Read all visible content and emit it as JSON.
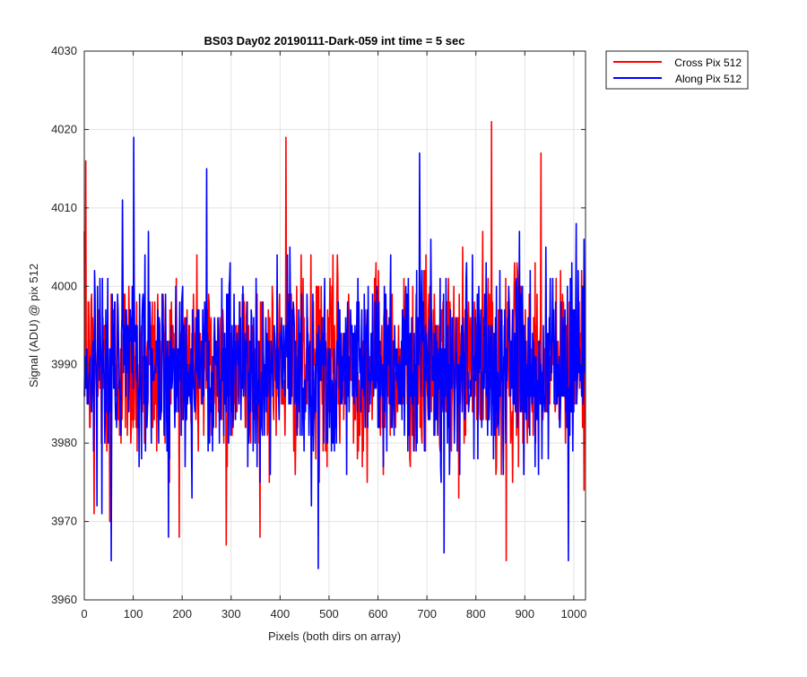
{
  "chart_data": {
    "type": "line",
    "title": "BS03 Day02 20190111-Dark-059 int time = 5 sec",
    "xlabel": "Pixels (both dirs on array)",
    "ylabel": "Signal (ADU) @ pix 512",
    "xlim": [
      0,
      1024
    ],
    "ylim": [
      3960,
      4030
    ],
    "xticks": [
      0,
      100,
      200,
      300,
      400,
      500,
      600,
      700,
      800,
      900,
      1000
    ],
    "yticks": [
      3960,
      3970,
      3980,
      3990,
      4000,
      4010,
      4020,
      4030
    ],
    "grid": true,
    "legend_position": "outside-top-right",
    "series": [
      {
        "name": "Cross Pix 512",
        "color": "#ff0000",
        "noisy_trace": {
          "n_points": 1024,
          "mean": 3990,
          "min": 3965,
          "max": 4021
        },
        "features": [
          {
            "x": 3,
            "y": 4016
          },
          {
            "x": 20,
            "y": 3971
          },
          {
            "x": 52,
            "y": 3970
          },
          {
            "x": 290,
            "y": 3967
          },
          {
            "x": 412,
            "y": 4019
          },
          {
            "x": 832,
            "y": 4021
          },
          {
            "x": 862,
            "y": 3965
          },
          {
            "x": 933,
            "y": 4017
          }
        ]
      },
      {
        "name": "Along Pix 512",
        "color": "#0000ff",
        "noisy_trace": {
          "n_points": 1024,
          "mean": 3990,
          "min": 3964,
          "max": 4019
        },
        "features": [
          {
            "x": 101,
            "y": 4019
          },
          {
            "x": 55,
            "y": 3965
          },
          {
            "x": 250,
            "y": 4015
          },
          {
            "x": 478,
            "y": 3964
          },
          {
            "x": 685,
            "y": 4017
          },
          {
            "x": 735,
            "y": 3966
          },
          {
            "x": 989,
            "y": 3965
          },
          {
            "x": 1005,
            "y": 4008
          }
        ]
      }
    ]
  }
}
